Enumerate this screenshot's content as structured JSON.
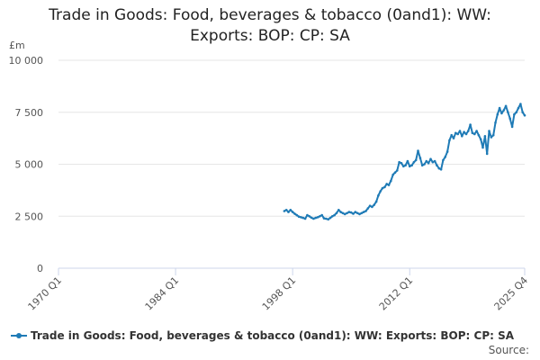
{
  "title_line1": "Trade in Goods: Food, beverages & tobacco (0and1): WW:",
  "title_line2": "Exports: BOP: CP: SA",
  "unit_label": "£m",
  "legend_label": "Trade in Goods: Food, beverages & tobacco (0and1): WW: Exports: BOP: CP: SA",
  "source_label": "Source:",
  "colors": {
    "series": "#1f7bb6",
    "grid": "#e6e6e6",
    "axis": "#ccd6eb"
  },
  "chart_data": {
    "type": "line",
    "title": "Trade in Goods: Food, beverages & tobacco (0and1): WW: Exports: BOP: CP: SA",
    "ylabel": "£m",
    "xlim": [
      1970.0,
      2025.75
    ],
    "ylim": [
      0,
      10000
    ],
    "x_ticks": [
      "1970 Q1",
      "1984 Q1",
      "1998 Q1",
      "2012 Q1",
      "2025 Q4"
    ],
    "y_ticks": [
      "0",
      "2 500",
      "5 000",
      "7 500",
      "10 000"
    ],
    "grid": true,
    "legend_position": "bottom",
    "series": [
      {
        "name": "Trade in Goods: Food, beverages & tobacco (0and1): WW: Exports: BOP: CP: SA",
        "x": [
          1997.0,
          1997.25,
          1997.5,
          1997.75,
          1998.0,
          1998.25,
          1998.5,
          1998.75,
          1999.0,
          1999.25,
          1999.5,
          1999.75,
          2000.0,
          2000.25,
          2000.5,
          2000.75,
          2001.0,
          2001.25,
          2001.5,
          2001.75,
          2002.0,
          2002.25,
          2002.5,
          2002.75,
          2003.0,
          2003.25,
          2003.5,
          2003.75,
          2004.0,
          2004.25,
          2004.5,
          2004.75,
          2005.0,
          2005.25,
          2005.5,
          2005.75,
          2006.0,
          2006.25,
          2006.5,
          2006.75,
          2007.0,
          2007.25,
          2007.5,
          2007.75,
          2008.0,
          2008.25,
          2008.5,
          2008.75,
          2009.0,
          2009.25,
          2009.5,
          2009.75,
          2010.0,
          2010.25,
          2010.5,
          2010.75,
          2011.0,
          2011.25,
          2011.5,
          2011.75,
          2012.0,
          2012.25,
          2012.5,
          2012.75,
          2013.0,
          2013.25,
          2013.5,
          2013.75,
          2014.0,
          2014.25,
          2014.5,
          2014.75,
          2015.0,
          2015.25,
          2015.5,
          2015.75,
          2016.0,
          2016.25,
          2016.5,
          2016.75,
          2017.0,
          2017.25,
          2017.5,
          2017.75,
          2018.0,
          2018.25,
          2018.5,
          2018.75,
          2019.0,
          2019.25,
          2019.5,
          2019.75,
          2020.0,
          2020.25,
          2020.5,
          2020.75,
          2021.0,
          2021.25,
          2021.5,
          2021.75,
          2022.0,
          2022.25,
          2022.5,
          2022.75,
          2023.0,
          2023.25,
          2023.5,
          2023.75,
          2024.0,
          2024.25,
          2024.5,
          2024.75,
          2025.0,
          2025.25,
          2025.5,
          2025.75
        ],
        "values": [
          2750,
          2800,
          2700,
          2800,
          2700,
          2620,
          2550,
          2480,
          2450,
          2420,
          2380,
          2550,
          2500,
          2430,
          2380,
          2420,
          2450,
          2500,
          2550,
          2400,
          2380,
          2350,
          2420,
          2500,
          2550,
          2650,
          2800,
          2700,
          2650,
          2600,
          2650,
          2700,
          2680,
          2620,
          2700,
          2650,
          2600,
          2650,
          2700,
          2750,
          2880,
          3000,
          2950,
          3050,
          3200,
          3500,
          3700,
          3850,
          3900,
          4050,
          4000,
          4200,
          4500,
          4600,
          4700,
          5100,
          5050,
          4900,
          4950,
          5150,
          4900,
          4950,
          5100,
          5200,
          5650,
          5300,
          4950,
          5000,
          5150,
          5050,
          5250,
          5100,
          5150,
          4950,
          4800,
          4750,
          5200,
          5350,
          5600,
          6150,
          6400,
          6250,
          6500,
          6450,
          6600,
          6350,
          6550,
          6450,
          6600,
          6900,
          6500,
          6450,
          6600,
          6400,
          6200,
          5800,
          6350,
          5500,
          6600,
          6300,
          6400,
          7000,
          7400,
          7700,
          7450,
          7600,
          7800,
          7500,
          7200,
          6800,
          7400,
          7500,
          7700,
          7900,
          7500,
          7350
        ]
      }
    ]
  }
}
